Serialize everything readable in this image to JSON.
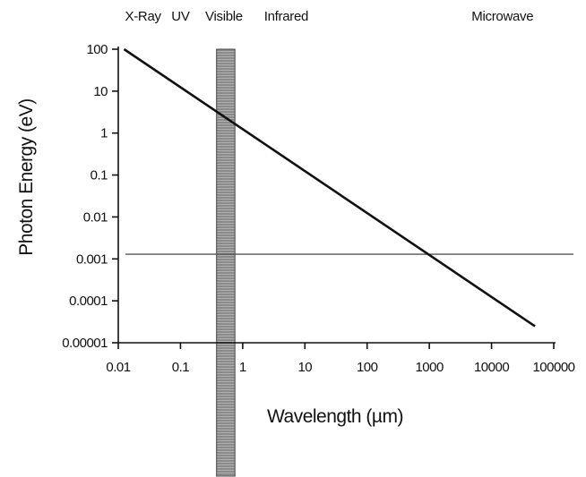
{
  "chart_data": {
    "type": "line",
    "title": "",
    "xlabel": "Wavelength (µm)",
    "ylabel": "Photon Energy (eV)",
    "x_scale": "log",
    "y_scale": "log",
    "xlim": [
      0.01,
      100000
    ],
    "ylim": [
      1e-05,
      100
    ],
    "x_ticks": [
      {
        "value": 0.01,
        "label": "0.01"
      },
      {
        "value": 0.1,
        "label": "0.1"
      },
      {
        "value": 1,
        "label": "1"
      },
      {
        "value": 10,
        "label": "10"
      },
      {
        "value": 100,
        "label": "100"
      },
      {
        "value": 1000,
        "label": "1000"
      },
      {
        "value": 10000,
        "label": "10000"
      },
      {
        "value": 100000,
        "label": "100000"
      }
    ],
    "y_ticks": [
      {
        "value": 100,
        "label": "100"
      },
      {
        "value": 10,
        "label": "10"
      },
      {
        "value": 1,
        "label": "1"
      },
      {
        "value": 0.1,
        "label": "0.1"
      },
      {
        "value": 0.01,
        "label": "0.01"
      },
      {
        "value": 0.001,
        "label": "0.001"
      },
      {
        "value": 0.0001,
        "label": "0.0001"
      },
      {
        "value": 1e-05,
        "label": "0.00001"
      }
    ],
    "series": [
      {
        "x": [
          0.0124,
          50000
        ],
        "y": [
          100,
          2.48e-05
        ]
      }
    ],
    "horizontal_line": {
      "y": 0.00129
    },
    "visible_band": {
      "x_start": 0.38,
      "x_end": 0.75
    },
    "region_labels": [
      {
        "text": "X-Ray",
        "x": 0.025
      },
      {
        "text": "UV",
        "x": 0.1
      },
      {
        "text": "Visible",
        "x": 0.5
      },
      {
        "text": "Infrared",
        "x": 5
      },
      {
        "text": "Microwave",
        "x": 15000
      }
    ],
    "colors": {
      "line": "#111111",
      "hline": "#555555",
      "band_fill": "#8a8a8a",
      "band_stripe": "#b0b0b0",
      "axis": "#111111"
    },
    "grid": false,
    "legend": "none"
  }
}
